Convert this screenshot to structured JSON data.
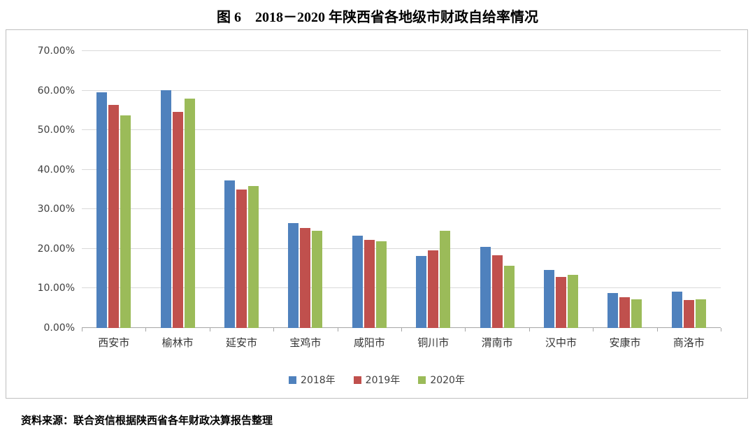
{
  "title": "图 6　2018－2020 年陕西省各地级市财政自给率情况",
  "source_note": "资料来源：联合资信根据陕西省各年财政决算报告整理",
  "chart_data": {
    "type": "bar",
    "title": "图 6　2018－2020 年陕西省各地级市财政自给率情况",
    "categories": [
      "西安市",
      "榆林市",
      "延安市",
      "宝鸡市",
      "咸阳市",
      "铜川市",
      "渭南市",
      "汉中市",
      "安康市",
      "商洛市"
    ],
    "series": [
      {
        "name": "2018年",
        "color": "#4F81BD",
        "values": [
          59.5,
          60.1,
          37.3,
          26.6,
          23.4,
          18.2,
          20.5,
          14.7,
          8.8,
          9.2
        ]
      },
      {
        "name": "2019年",
        "color": "#C0504D",
        "values": [
          56.4,
          54.6,
          35.0,
          25.2,
          22.2,
          19.7,
          18.4,
          12.9,
          7.7,
          7.0
        ]
      },
      {
        "name": "2020年",
        "color": "#9BBB59",
        "values": [
          53.7,
          58.0,
          35.9,
          24.5,
          21.9,
          24.5,
          15.7,
          13.4,
          7.3,
          7.2
        ]
      }
    ],
    "xlabel": "",
    "ylabel": "",
    "ylim": [
      0,
      70
    ],
    "ytick_step": 10,
    "ytick_labels": [
      "0.00%",
      "10.00%",
      "20.00%",
      "30.00%",
      "40.00%",
      "50.00%",
      "60.00%",
      "70.00%"
    ],
    "grid": true,
    "legend_position": "bottom"
  },
  "colors": {
    "gridline": "#d9d9d9",
    "axis_line": "#a6a6a6",
    "chart_border": "#bfbfbf",
    "text": "#3f3f3f"
  }
}
